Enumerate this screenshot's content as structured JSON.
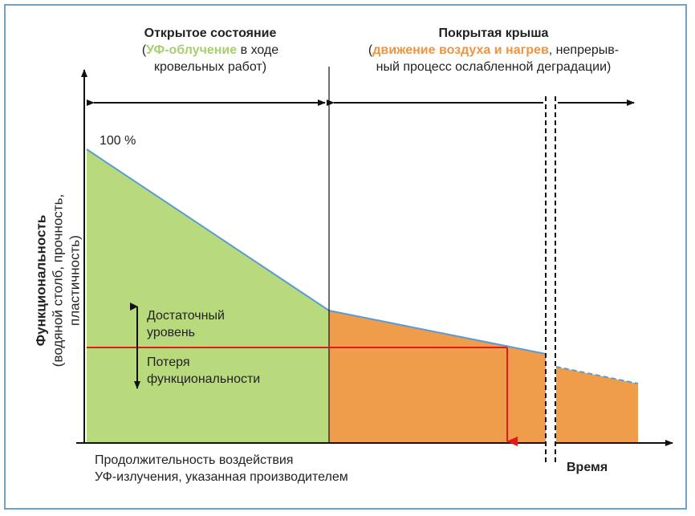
{
  "left_phase": {
    "title": "Открытое состояние",
    "open_paren": "(",
    "highlight": "УФ-облучение",
    "rest_line1": " в ходе",
    "line2": "кровельных работ)"
  },
  "right_phase": {
    "title": "Покрытая крыша",
    "open_paren": "(",
    "highlight": "движение воздуха и нагрев",
    "rest_line1": ", непрерыв-",
    "line2": "ный процесс ослабленной деградации)"
  },
  "start_label": "100 %",
  "threshold": {
    "above": "Достаточный уровень",
    "below": "Потеря функциональности"
  },
  "y_axis": {
    "title": "Функциональность",
    "subtitle": "(водяной столб, прочность, пластичность)"
  },
  "x_axis": {
    "title": "Время"
  },
  "uv_note": {
    "line1": "Продолжительность воздействия",
    "line2": "УФ-излучения, указанная производителем"
  },
  "colors": {
    "green": "#b8d97c",
    "orange": "#f09d4b",
    "line": "#5b9bd5",
    "threshold": "#e01b1b"
  }
}
